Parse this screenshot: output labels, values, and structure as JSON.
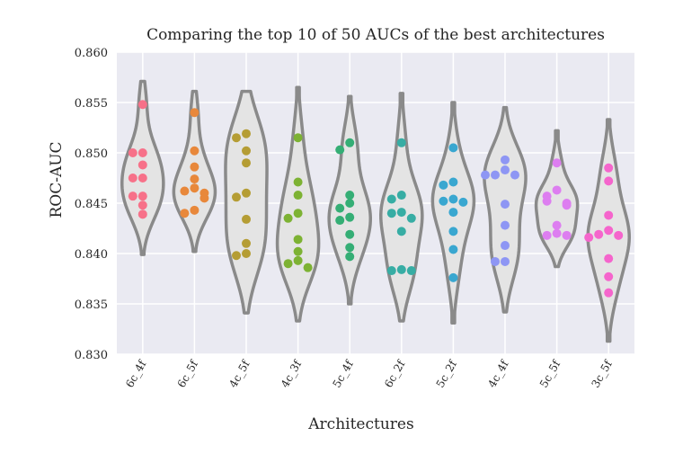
{
  "chart_data": {
    "type": "violin",
    "title": "Comparing the top 10 of 50 AUCs of the best architectures",
    "xlabel": "Architectures",
    "ylabel": "ROC-AUC",
    "ylim": [
      0.83,
      0.86
    ],
    "yticks": [
      "0.830",
      "0.835",
      "0.840",
      "0.845",
      "0.850",
      "0.855",
      "0.860"
    ],
    "grid": true,
    "categories": [
      "6c_4f",
      "6c_5f",
      "4c_5f",
      "4c_3f",
      "5c_4f",
      "6c_2f",
      "5c_2f",
      "4c_4f",
      "5c_5f",
      "3c_5f"
    ],
    "series": [
      {
        "category": "6c_4f",
        "color": "#f77189",
        "range": [
          0.8399,
          0.8571
        ],
        "points": [
          0.8548,
          0.85,
          0.85,
          0.8488,
          0.8475,
          0.8475,
          0.8457,
          0.8457,
          0.8448,
          0.8439
        ]
      },
      {
        "category": "6c_5f",
        "color": "#e8883b",
        "range": [
          0.8402,
          0.8561
        ],
        "points": [
          0.854,
          0.8502,
          0.8486,
          0.8474,
          0.8465,
          0.8462,
          0.846,
          0.8455,
          0.8443,
          0.844
        ]
      },
      {
        "category": "4c_5f",
        "color": "#b59d34",
        "range": [
          0.8341,
          0.8561
        ],
        "points": [
          0.8519,
          0.8515,
          0.8502,
          0.849,
          0.846,
          0.8456,
          0.8434,
          0.841,
          0.84,
          0.8398
        ]
      },
      {
        "category": "4c_3f",
        "color": "#7db233",
        "range": [
          0.8333,
          0.8565
        ],
        "points": [
          0.8515,
          0.8471,
          0.8458,
          0.844,
          0.8435,
          0.8414,
          0.8402,
          0.8393,
          0.839,
          0.8386
        ]
      },
      {
        "category": "5c_4f",
        "color": "#35ae75",
        "range": [
          0.835,
          0.8556
        ],
        "points": [
          0.851,
          0.8503,
          0.8458,
          0.845,
          0.8445,
          0.8436,
          0.8433,
          0.8419,
          0.8406,
          0.8397
        ]
      },
      {
        "category": "6c_2f",
        "color": "#37ada4",
        "range": [
          0.8333,
          0.8559
        ],
        "points": [
          0.851,
          0.8458,
          0.8454,
          0.8441,
          0.844,
          0.8435,
          0.8422,
          0.8384,
          0.8383,
          0.8383
        ]
      },
      {
        "category": "5c_2f",
        "color": "#39a7d0",
        "range": [
          0.8331,
          0.855
        ],
        "points": [
          0.8505,
          0.8471,
          0.8468,
          0.8454,
          0.8452,
          0.8451,
          0.8441,
          0.8422,
          0.8404,
          0.8376
        ]
      },
      {
        "category": "4c_4f",
        "color": "#8e96f4",
        "range": [
          0.8342,
          0.8545
        ],
        "points": [
          0.8493,
          0.8483,
          0.8478,
          0.8478,
          0.8478,
          0.8449,
          0.8428,
          0.8408,
          0.8392,
          0.8392
        ]
      },
      {
        "category": "5c_5f",
        "color": "#dd7ef0",
        "range": [
          0.8387,
          0.8522
        ],
        "points": [
          0.849,
          0.8463,
          0.8457,
          0.8452,
          0.845,
          0.8448,
          0.8428,
          0.842,
          0.8418,
          0.8418
        ]
      },
      {
        "category": "3c_5f",
        "color": "#f565cc",
        "range": [
          0.8313,
          0.8533
        ],
        "points": [
          0.8485,
          0.8472,
          0.8438,
          0.8423,
          0.8419,
          0.8418,
          0.8416,
          0.8395,
          0.8377,
          0.8361
        ]
      }
    ]
  }
}
